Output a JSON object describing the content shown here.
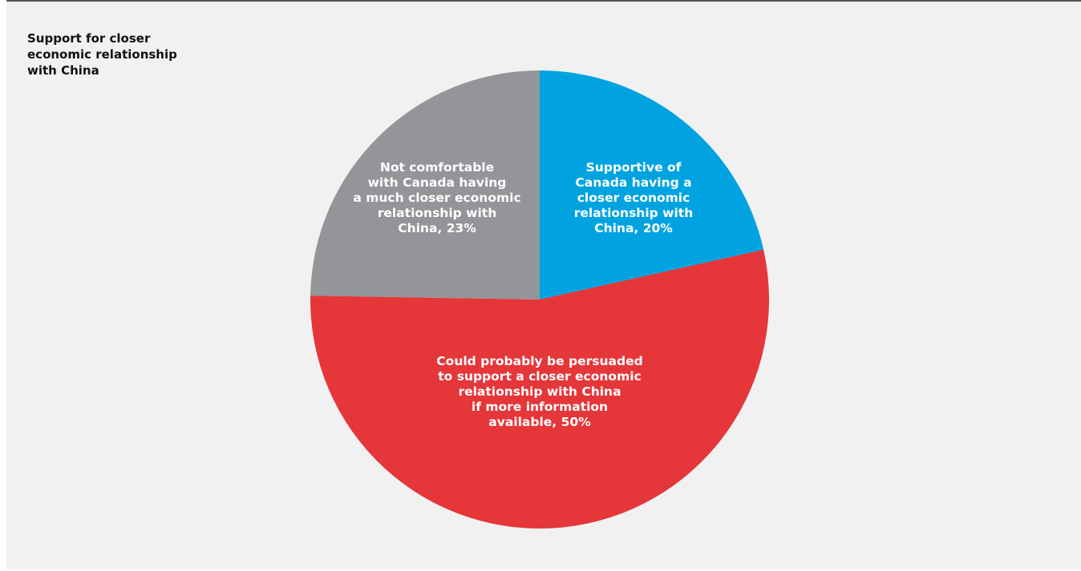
{
  "chart_data": {
    "type": "pie",
    "title": "Support for closer\neconomic relationship\nwith China",
    "slices": [
      {
        "label": "Supportive of Canada having a closer economic relationship with China, 20%",
        "label_lines": [
          "Supportive of",
          "Canada having a",
          "closer economic",
          "relationship with",
          "China, 20%"
        ],
        "value": 20,
        "color": "#00a3e0"
      },
      {
        "label": "Could probably be persuaded to support a closer economic relationship with China if more information available, 50%",
        "label_lines": [
          "Could probably be persuaded",
          "to support a closer economic",
          "relationship with China",
          "if more information",
          "available, 50%"
        ],
        "value": 50,
        "color": "#e5363a"
      },
      {
        "label": "Not comfortable with Canada having a much closer economic relationship with China, 23%",
        "label_lines": [
          "Not comfortable",
          "with Canada having",
          "a much closer economic",
          "relationship with",
          "China, 23%"
        ],
        "value": 23,
        "color": "#939598"
      }
    ]
  }
}
